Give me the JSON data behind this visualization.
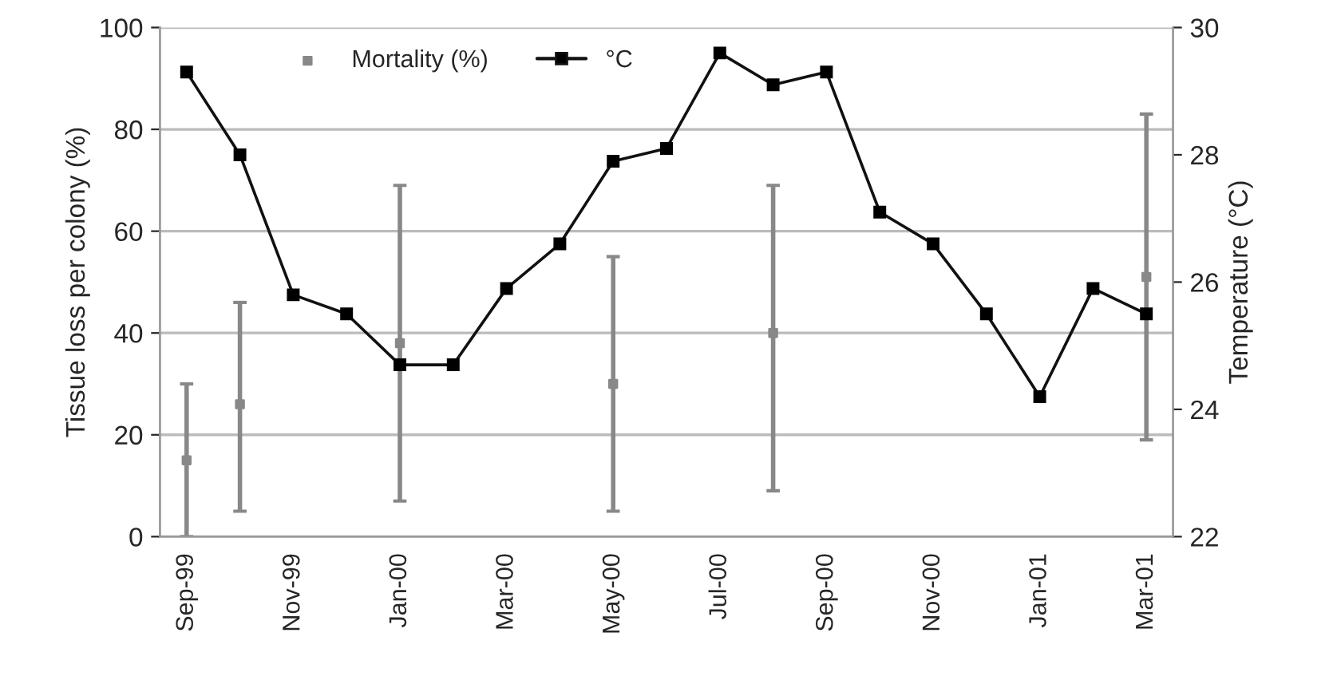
{
  "chart_data": {
    "type": "line",
    "categories": [
      "Sep-99",
      null,
      "Nov-99",
      null,
      "Jan-00",
      null,
      "Mar-00",
      null,
      "May-00",
      null,
      "Jul-00",
      null,
      "Sep-00",
      null,
      "Nov-00",
      null,
      "Jan-01",
      null,
      "Mar-01"
    ],
    "ylabel": "Tissue loss per colony (%)",
    "y2label": "Temperature (°C)",
    "ylim": [
      0,
      100
    ],
    "yticks": [
      0,
      20,
      40,
      60,
      80,
      100
    ],
    "y2lim": [
      22,
      30
    ],
    "y2ticks": [
      22,
      24,
      26,
      28,
      30
    ],
    "grid": "y",
    "legend": "top left",
    "marker": "square",
    "line_style": "solid",
    "series": [
      {
        "name": "Mortality (%)",
        "type": "scatter",
        "color": "#888888",
        "values": [
          15,
          26,
          null,
          null,
          38,
          null,
          null,
          null,
          30,
          null,
          null,
          40,
          null,
          null,
          null,
          null,
          null,
          null,
          51
        ],
        "errors": [
          [
            0,
            30
          ],
          [
            5,
            46
          ],
          null,
          null,
          [
            7,
            69
          ],
          null,
          null,
          null,
          [
            5,
            55
          ],
          null,
          null,
          [
            9,
            69
          ],
          null,
          null,
          null,
          null,
          null,
          null,
          [
            19,
            83
          ]
        ]
      },
      {
        "name": "°C",
        "axis": "y2",
        "color": "#111111",
        "values": [
          29.3,
          28.0,
          25.8,
          25.5,
          24.7,
          24.7,
          25.9,
          26.6,
          27.9,
          28.1,
          29.6,
          29.1,
          29.3,
          27.1,
          26.6,
          25.5,
          24.2,
          25.9,
          25.5
        ]
      }
    ]
  }
}
